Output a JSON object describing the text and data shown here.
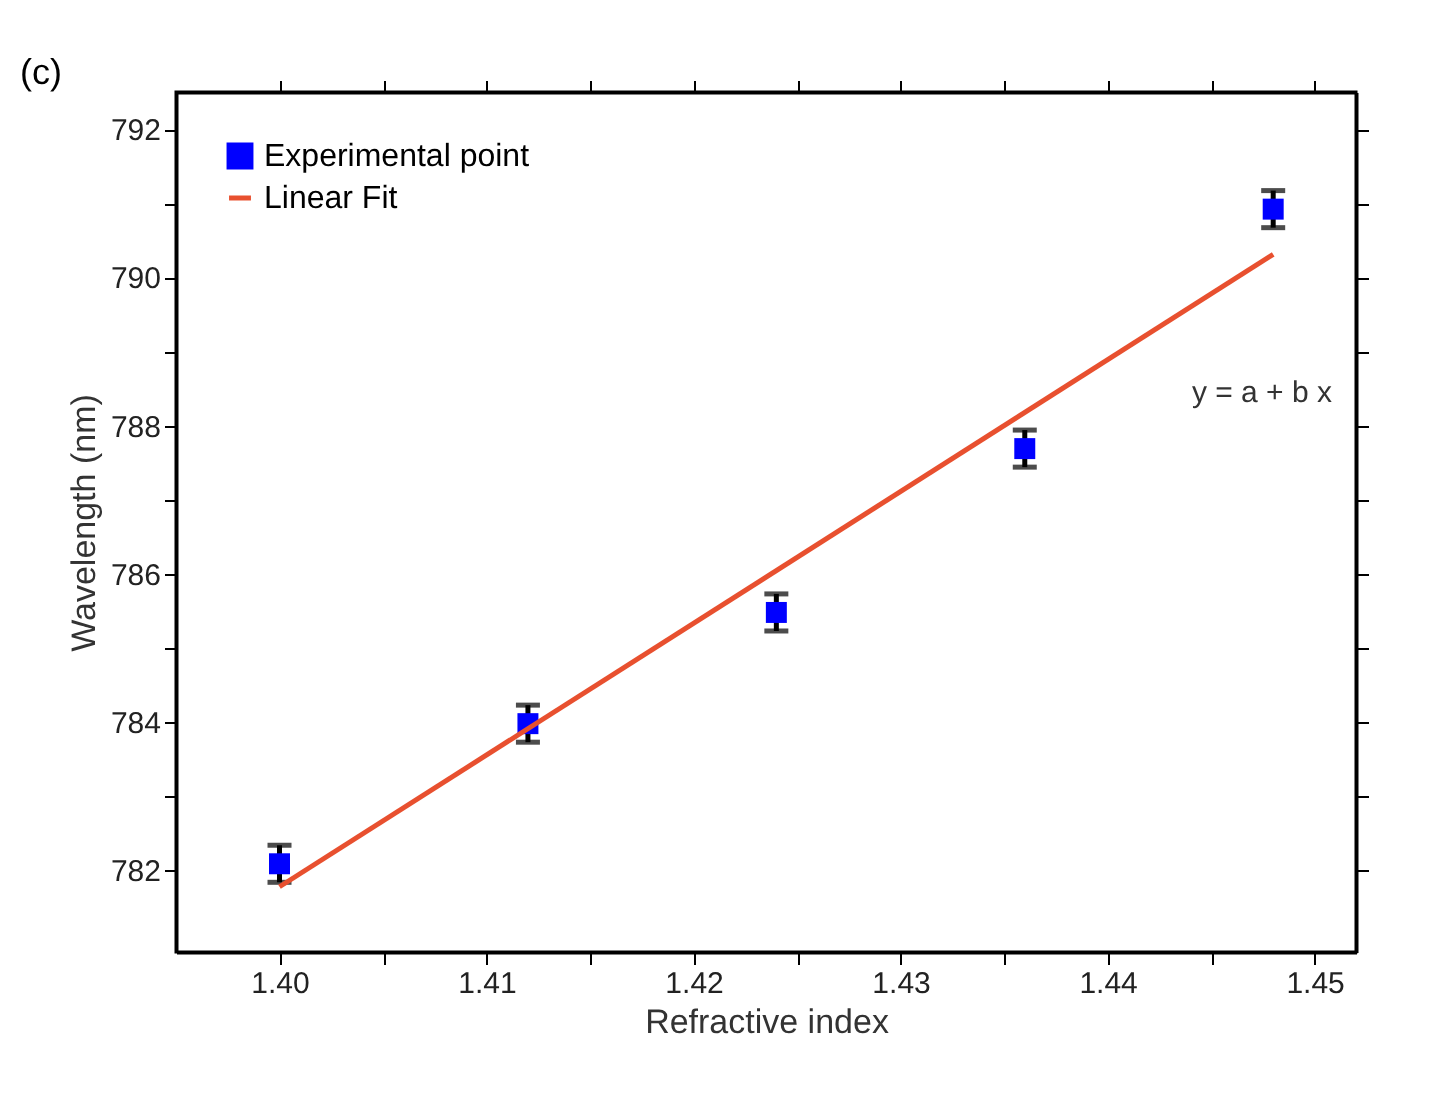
{
  "chart_data": {
    "type": "scatter",
    "xlabel": "Refractive index",
    "ylabel": "Wavelength (nm)",
    "x": [
      1.4,
      1.412,
      1.424,
      1.436,
      1.448
    ],
    "series": [
      {
        "name": "Experimental point",
        "color": "#0000ff",
        "marker": "square",
        "values": [
          782.09,
          783.98,
          785.48,
          787.69,
          790.92
        ],
        "errors": [
          0.25,
          0.25,
          0.25,
          0.25,
          0.25
        ]
      },
      {
        "name": "Linear Fit",
        "type": "line",
        "color": "#e8502f",
        "x": [
          1.4,
          1.448
        ],
        "values": [
          781.78,
          790.31
        ],
        "line_style": "solid"
      }
    ],
    "xlim": [
      1.395,
      1.452
    ],
    "xticks": [
      {
        "value": 1.4,
        "label": "1.40"
      },
      {
        "value": 1.405,
        "label": null
      },
      {
        "value": 1.41,
        "label": "1.41"
      },
      {
        "value": 1.415,
        "label": null
      },
      {
        "value": 1.42,
        "label": "1.42"
      },
      {
        "value": 1.425,
        "label": null
      },
      {
        "value": 1.43,
        "label": "1.43"
      },
      {
        "value": 1.435,
        "label": null
      },
      {
        "value": 1.44,
        "label": "1.44"
      },
      {
        "value": 1.445,
        "label": null
      },
      {
        "value": 1.45,
        "label": "1.45"
      }
    ],
    "ylim": [
      780.9,
      792.5
    ],
    "yticks": [
      782,
      {
        "value": 783,
        "label": null
      },
      784,
      {
        "value": 785,
        "label": null
      },
      786,
      {
        "value": 787,
        "label": null
      },
      788,
      {
        "value": 789,
        "label": null
      },
      790,
      {
        "value": 791,
        "label": null
      },
      792
    ],
    "annotations": [
      "(c)",
      "y = a + b x"
    ],
    "legend": "top left",
    "grid": false
  }
}
